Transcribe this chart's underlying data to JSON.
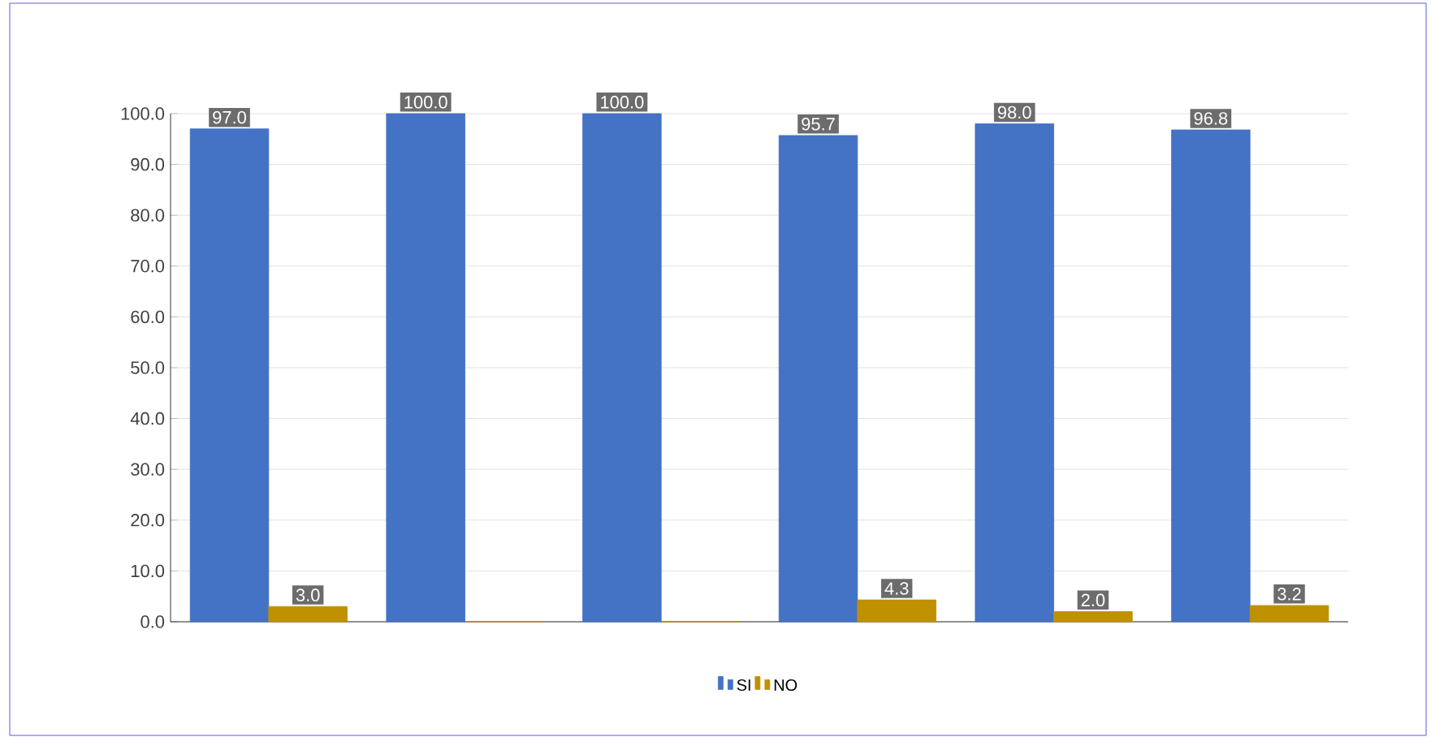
{
  "chart_data": {
    "type": "bar",
    "categories": [
      null,
      null,
      null,
      null,
      null,
      null
    ],
    "series": [
      {
        "name": "SI",
        "color": "#4472c4",
        "values": [
          97.0,
          100.0,
          100.0,
          95.7,
          98.0,
          96.8
        ],
        "value_labels": [
          "97.0",
          "100.0",
          "100.0",
          "95.7",
          "98.0",
          "96.8"
        ]
      },
      {
        "name": "NO",
        "color": "#bf9000",
        "values": [
          3.0,
          0,
          0,
          4.3,
          2.0,
          3.2
        ],
        "value_labels": [
          "3.0",
          null,
          null,
          "4.3",
          "2.0",
          "3.2"
        ]
      }
    ],
    "ylim": [
      0,
      100
    ],
    "yticks": [
      {
        "value": 0,
        "label": "0.0"
      },
      {
        "value": 10,
        "label": "10.0"
      },
      {
        "value": 20,
        "label": "20.0"
      },
      {
        "value": 30,
        "label": "30.0"
      },
      {
        "value": 40,
        "label": "40.0"
      },
      {
        "value": 50,
        "label": "50.0"
      },
      {
        "value": 60,
        "label": "60.0"
      },
      {
        "value": 70,
        "label": "70.0"
      },
      {
        "value": 80,
        "label": "80.0"
      },
      {
        "value": 90,
        "label": "90.0"
      },
      {
        "value": 100,
        "label": "100.0"
      }
    ],
    "grid": "y",
    "legend": "bottom"
  }
}
